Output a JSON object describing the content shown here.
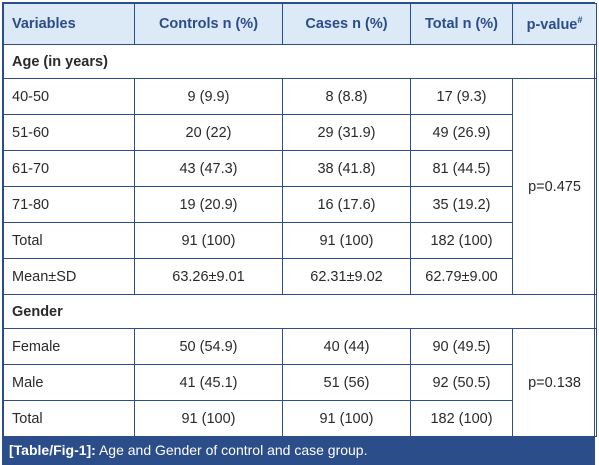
{
  "table": {
    "headers": {
      "variables": "Variables",
      "controls": "Controls n (%)",
      "cases": "Cases n (%)",
      "total": "Total n (%)",
      "pvalue": "p-value",
      "pvalue_mark": "#"
    },
    "age_section": {
      "label": "Age (in years)",
      "rows": [
        {
          "label": "40-50",
          "controls": "9 (9.9)",
          "cases": "8 (8.8)",
          "total": "17 (9.3)"
        },
        {
          "label": "51-60",
          "controls": "20 (22)",
          "cases": "29 (31.9)",
          "total": "49 (26.9)"
        },
        {
          "label": "61-70",
          "controls": "43 (47.3)",
          "cases": "38 (41.8)",
          "total": "81 (44.5)"
        },
        {
          "label": "71-80",
          "controls": "19 (20.9)",
          "cases": "16 (17.6)",
          "total": "35 (19.2)"
        },
        {
          "label": "Total",
          "controls": "91 (100)",
          "cases": "91 (100)",
          "total": "182 (100)"
        },
        {
          "label": "Mean±SD",
          "controls": "63.26±9.01",
          "cases": "62.31±9.02",
          "total": "62.79±9.00"
        }
      ],
      "pvalue": "p=0.475"
    },
    "gender_section": {
      "label": "Gender",
      "rows": [
        {
          "label": "Female",
          "controls": "50 (54.9)",
          "cases": "40 (44)",
          "total": "90 (49.5)"
        },
        {
          "label": "Male",
          "controls": "41 (45.1)",
          "cases": "51 (56)",
          "total": "92 (50.5)"
        },
        {
          "label": "Total",
          "controls": "91 (100)",
          "cases": "91 (100)",
          "total": "182 (100)"
        }
      ],
      "pvalue": "p=0.138"
    }
  },
  "caption": {
    "label": "[Table/Fig-1]:",
    "text": " Age and Gender of control and case group."
  },
  "colors": {
    "border": "#2b4d8a",
    "header_bg": "#dce9f6",
    "header_text": "#2b4d8a",
    "caption_bg": "#2b4d8a"
  }
}
